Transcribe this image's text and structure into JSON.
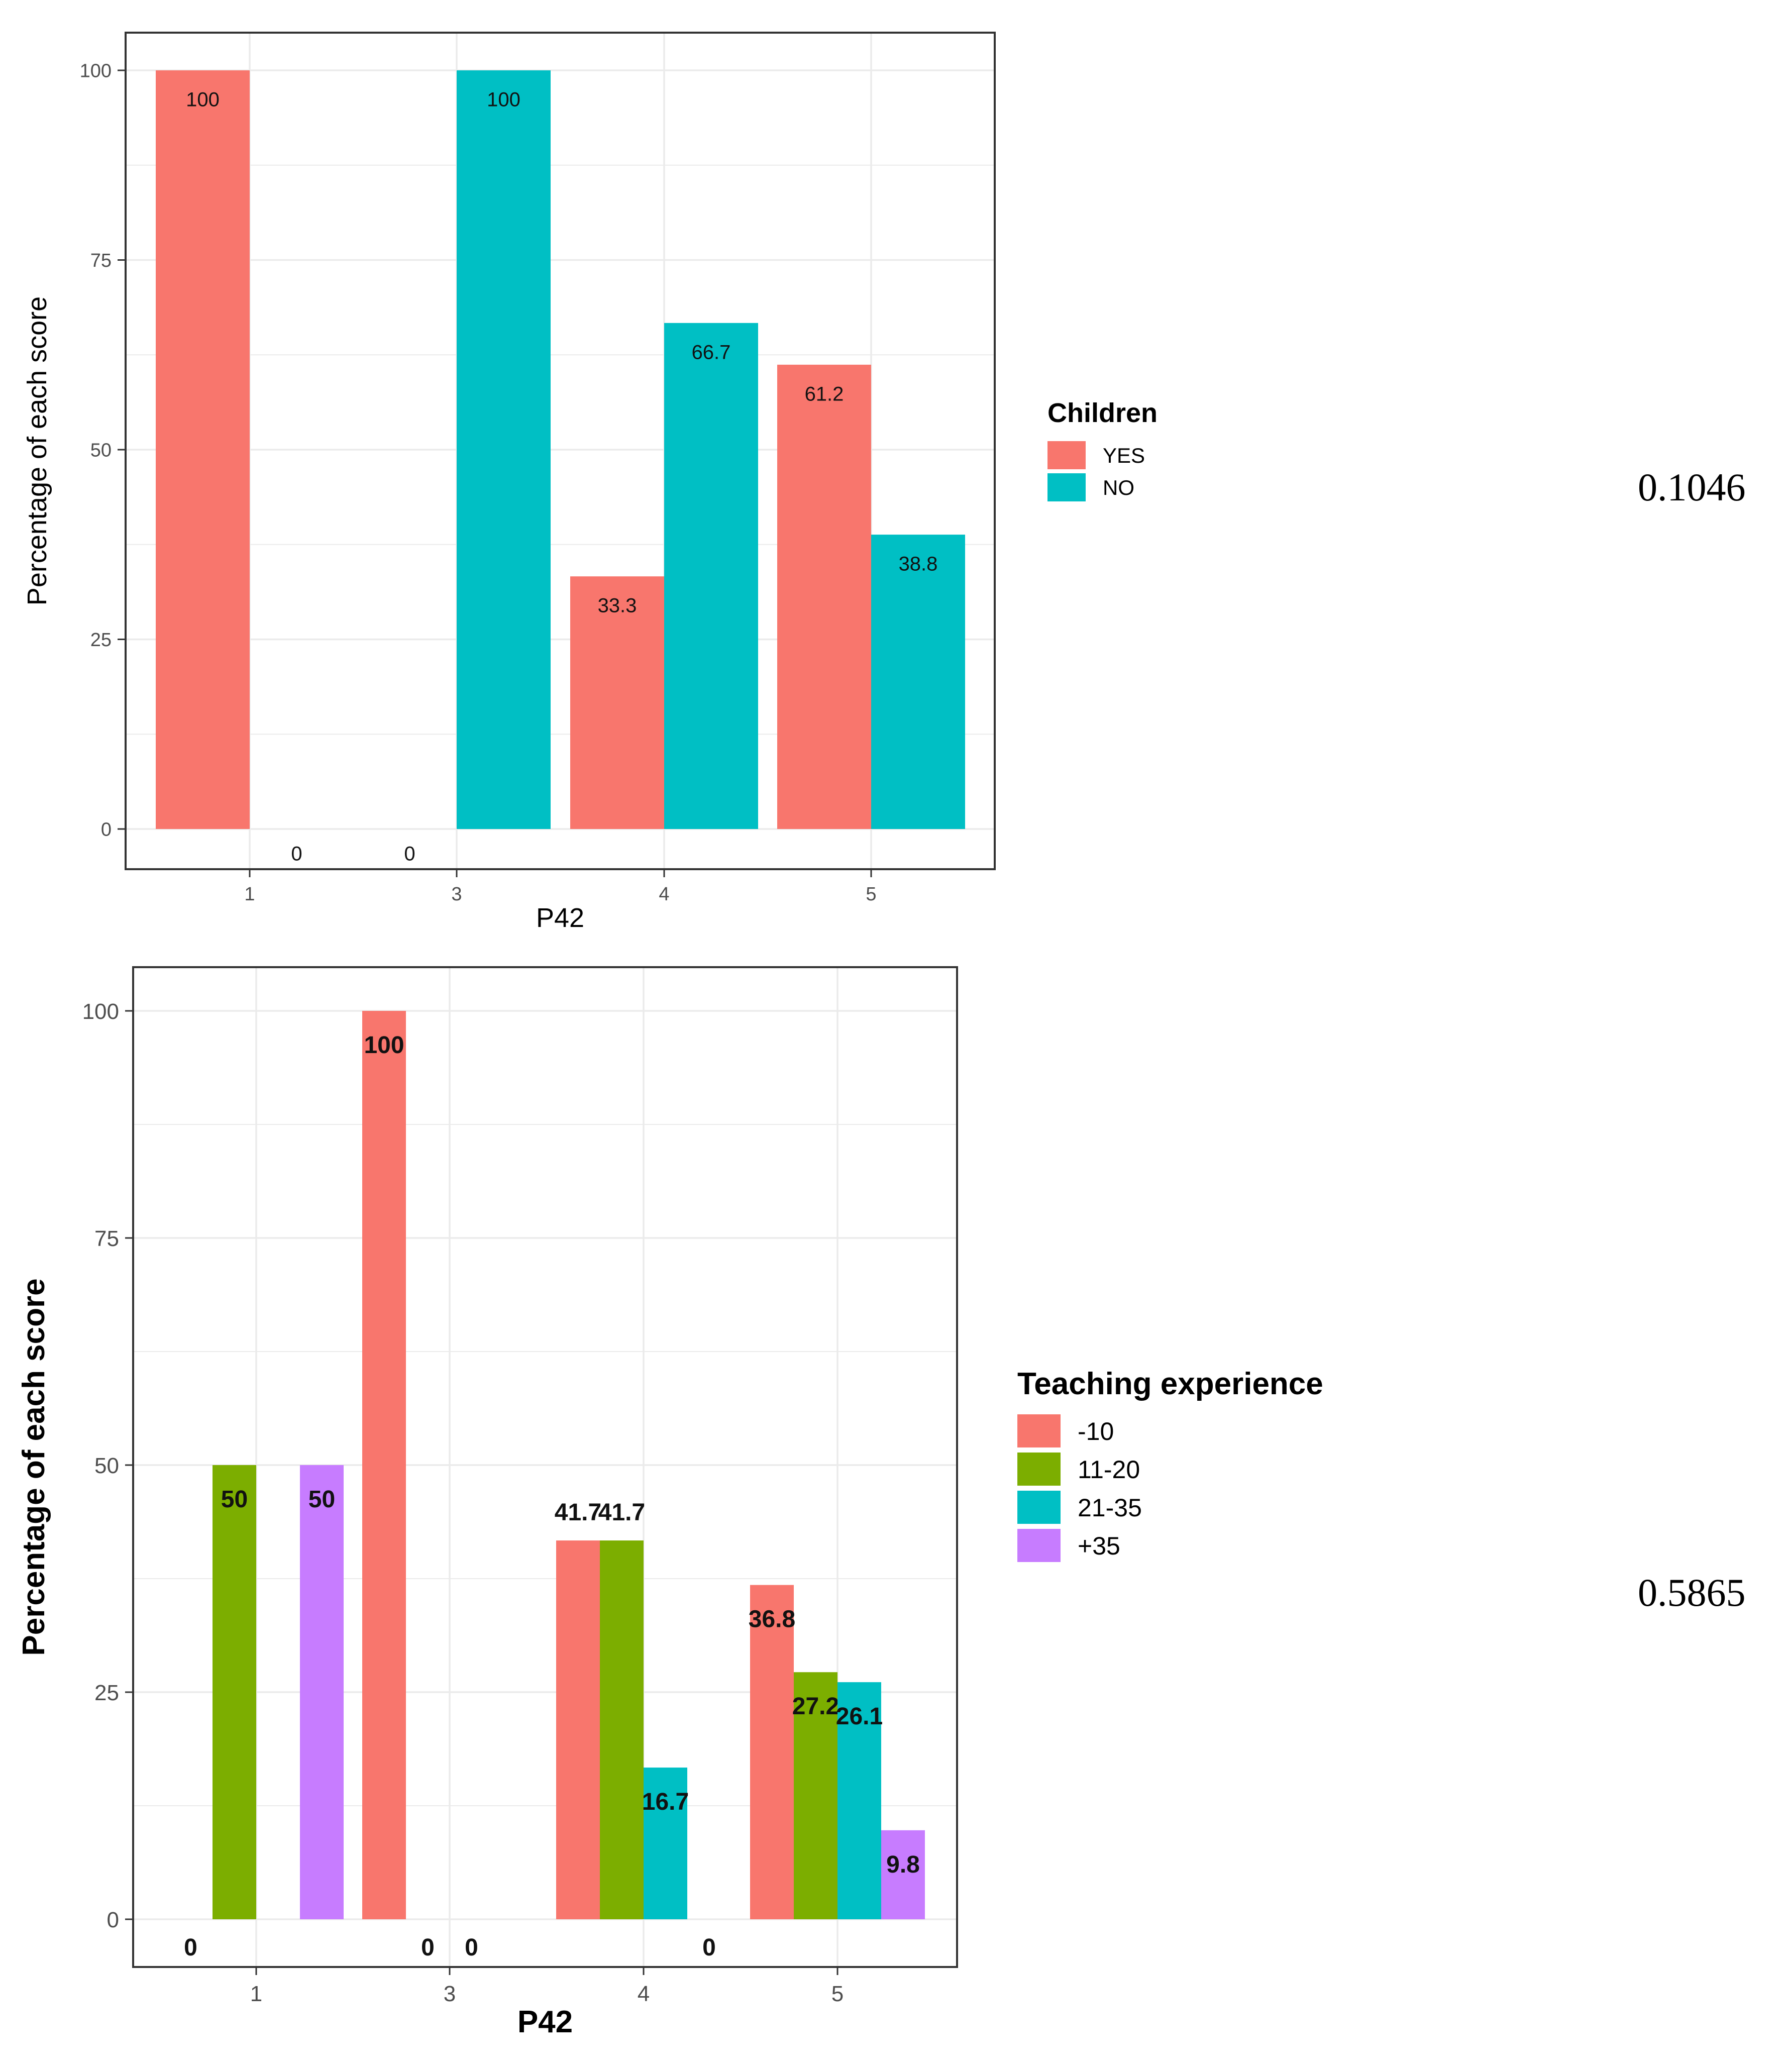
{
  "colors": {
    "yes": "#F8766D",
    "no": "#00BFC4",
    "exp_minus10": "#F8766D",
    "exp_11_20": "#7CAE00",
    "exp_21_35": "#00BFC4",
    "exp_plus35": "#C77CFF",
    "grid": "#EBEBEB",
    "axis_text": "#4D4D4D",
    "frame": "#333333"
  },
  "p_values": [
    "0.1046",
    "0.5865"
  ],
  "chart_data": [
    {
      "type": "bar",
      "title": "",
      "xlabel": "P42",
      "ylabel": "Percentage of each score",
      "categories": [
        "1",
        "3",
        "4",
        "5"
      ],
      "ylim": [
        0,
        100
      ],
      "yticks": [
        "0",
        "25",
        "50",
        "75",
        "100"
      ],
      "legend": {
        "title": "Children",
        "position": "right"
      },
      "series": [
        {
          "name": "YES",
          "values": [
            100,
            0,
            33.3,
            61.2
          ],
          "labels": [
            "100",
            "0",
            "33.3",
            "61.2"
          ]
        },
        {
          "name": "NO",
          "values": [
            0,
            100,
            66.7,
            38.8
          ],
          "labels": [
            "0",
            "100",
            "66.7",
            "38.8"
          ]
        }
      ]
    },
    {
      "type": "bar",
      "title": "",
      "xlabel": "P42",
      "ylabel": "Percentage of each score",
      "categories": [
        "1",
        "3",
        "4",
        "5"
      ],
      "ylim": [
        0,
        100
      ],
      "yticks": [
        "0",
        "25",
        "50",
        "75",
        "100"
      ],
      "legend": {
        "title": "Teaching experience",
        "position": "right"
      },
      "series": [
        {
          "name": "-10",
          "values": [
            0,
            100,
            41.7,
            36.8
          ],
          "labels": [
            "0",
            "100",
            "41.7",
            "36.8"
          ]
        },
        {
          "name": "11-20",
          "values": [
            50,
            0,
            41.7,
            27.2
          ],
          "labels": [
            "50",
            "0",
            "41.7",
            "27.2"
          ]
        },
        {
          "name": "21-35",
          "values": [
            null,
            0,
            16.7,
            26.1
          ],
          "labels": [
            "",
            "0",
            "16.7",
            "26.1"
          ]
        },
        {
          "name": "+35",
          "values": [
            50,
            null,
            0,
            9.8
          ],
          "labels": [
            "50",
            "",
            "0",
            "9.8"
          ]
        }
      ]
    }
  ]
}
